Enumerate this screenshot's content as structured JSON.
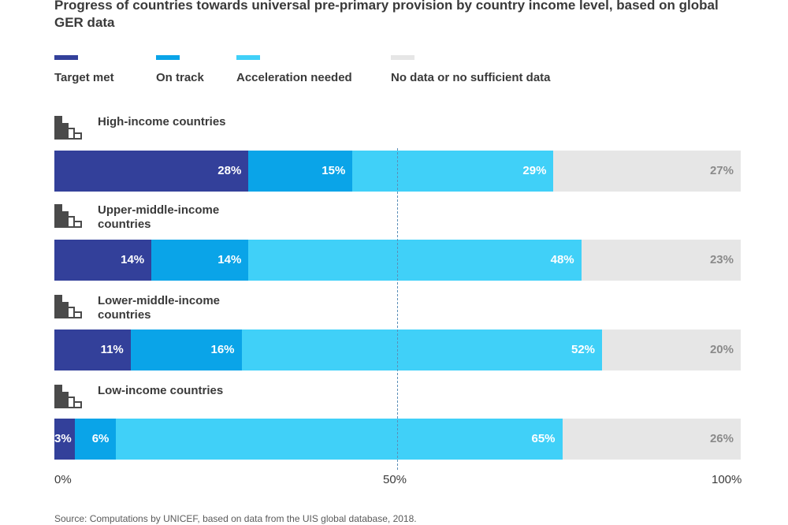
{
  "title": "Progress of countries towards universal pre-primary provision by country income level, based on global GER data",
  "colors": {
    "target_met": "#33409a",
    "on_track": "#0aa4e8",
    "acceleration_needed": "#40d0f8",
    "no_data": "#e6e6e6",
    "light_label": "#ffffff",
    "dark_label": "#8a8a8a",
    "reference_line": "#5b8fb8"
  },
  "legend": [
    {
      "label": "Target met",
      "color": "#33409a"
    },
    {
      "label": "On track",
      "color": "#0aa4e8"
    },
    {
      "label": "Acceleration needed",
      "color": "#40d0f8"
    },
    {
      "label": "No data or no sufficient data",
      "color": "#e6e6e6"
    }
  ],
  "icon": "income-level-bars-icon",
  "x_ticks": [
    "0%",
    "50%",
    "100%"
  ],
  "source": "Source: Computations by UNICEF, based on data from the UIS global database, 2018.",
  "chart_data": {
    "type": "bar",
    "orientation": "horizontal",
    "stacked": true,
    "xlim": [
      0,
      100
    ],
    "reference_line": 50,
    "grid": false,
    "legend_position": "top",
    "categories": [
      "High-income countries",
      "Upper-middle-income countries",
      "Lower-middle-income countries",
      "Low-income countries"
    ],
    "series": [
      {
        "name": "Target met",
        "values": [
          28,
          14,
          11,
          3
        ],
        "labels": [
          "28%",
          "14%",
          "11%",
          "3%"
        ]
      },
      {
        "name": "On track",
        "values": [
          15,
          14,
          16,
          6
        ],
        "labels": [
          "15%",
          "14%",
          "16%",
          "6%"
        ]
      },
      {
        "name": "Acceleration needed",
        "values": [
          29,
          48,
          52,
          65
        ],
        "labels": [
          "29%",
          "48%",
          "52%",
          "65%"
        ]
      },
      {
        "name": "No data or no sufficient data",
        "values": [
          27,
          23,
          20,
          26
        ],
        "labels": [
          "27%",
          "23%",
          "20%",
          "26%"
        ]
      }
    ]
  }
}
